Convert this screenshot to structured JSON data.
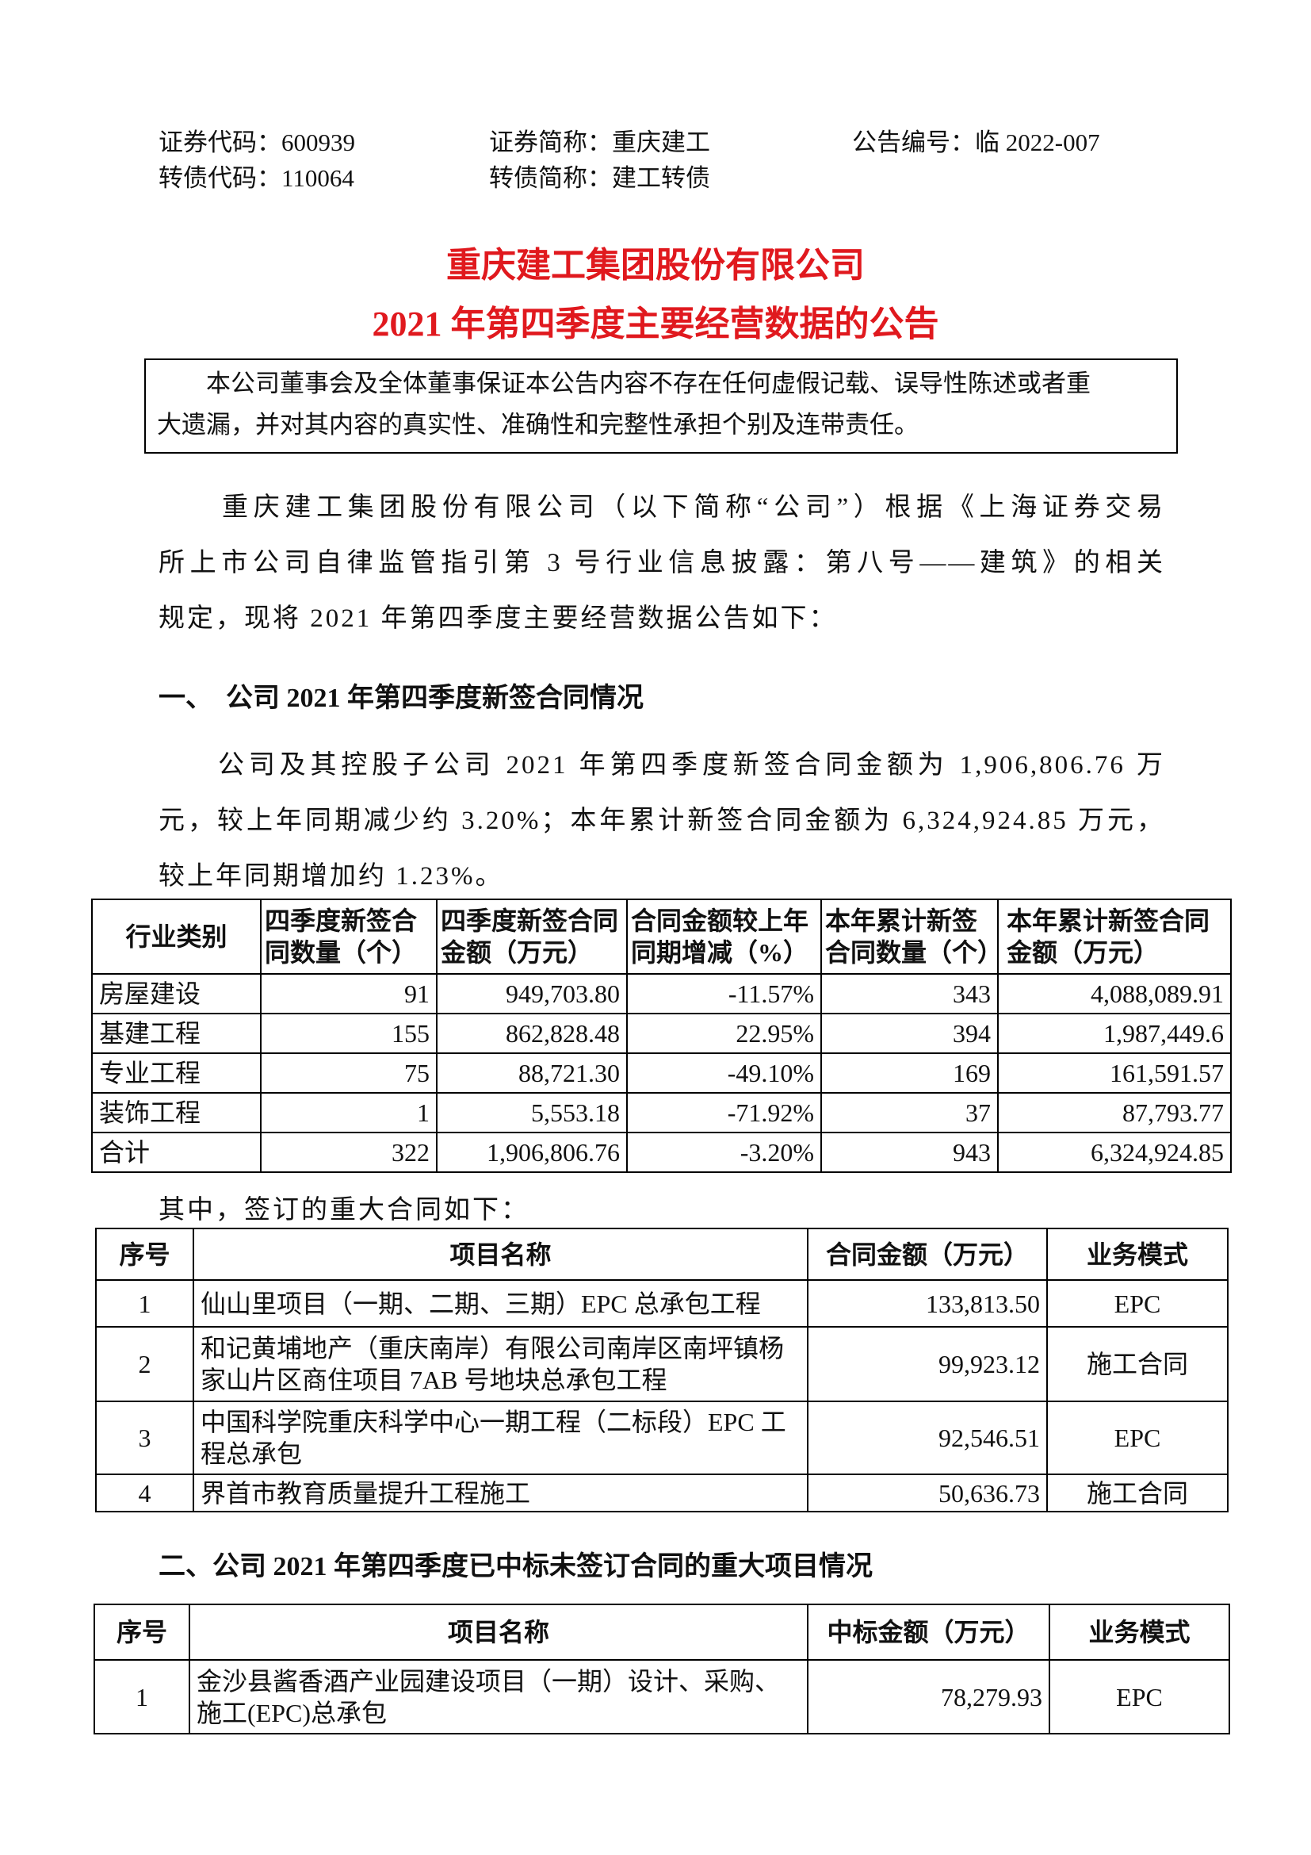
{
  "header": {
    "stock_code": "证券代码：600939",
    "stock_name": "证券简称：重庆建工",
    "notice_no": "公告编号：临 2022-007",
    "bond_code": "转债代码：110064",
    "bond_name": "转债简称：建工转债"
  },
  "title": {
    "line1": "重庆建工集团股份有限公司",
    "line2": "2021 年第四季度主要经营数据的公告"
  },
  "notice": {
    "line1": "本公司董事会及全体董事保证本公告内容不存在任何虚假记载、误导性陈述或者重",
    "line2": "大遗漏，并对其内容的真实性、准确性和完整性承担个别及连带责任。"
  },
  "intro": [
    "重庆建工集团股份有限公司（以下简称“公司”）根据《上海证券交易",
    "所上市公司自律监管指引第 3 号行业信息披露：第八号——建筑》的相关",
    "规定，现将 2021 年第四季度主要经营数据公告如下："
  ],
  "section1": {
    "heading": "一、　公司 2021 年第四季度新签合同情况",
    "para": [
      "公司及其控股子公司 2021 年第四季度新签合同金额为 1,906,806.76 万",
      "元，较上年同期减少约 3.20%；本年累计新签合同金额为 6,324,924.85 万元，",
      "较上年同期增加约 1.23%。"
    ]
  },
  "table1": {
    "headers": [
      "行业类别",
      "四季度新签合同数量（个）",
      "四季度新签合同金额（万元）",
      "合同金额较上年同期增减（%）",
      "本年累计新签合同数量（个）",
      "本年累计新签合同金额（万元）"
    ],
    "rows": [
      [
        "房屋建设",
        "91",
        "949,703.80",
        "-11.57%",
        "343",
        "4,088,089.91"
      ],
      [
        "基建工程",
        "155",
        "862,828.48",
        "22.95%",
        "394",
        "1,987,449.6"
      ],
      [
        "专业工程",
        "75",
        "88,721.30",
        "-49.10%",
        "169",
        "161,591.57"
      ],
      [
        "装饰工程",
        "1",
        "5,553.18",
        "-71.92%",
        "37",
        "87,793.77"
      ],
      [
        "合计",
        "322",
        "1,906,806.76",
        "-3.20%",
        "943",
        "6,324,924.85"
      ]
    ]
  },
  "major_intro": "其中，签订的重大合同如下：",
  "table2": {
    "headers": [
      "序号",
      "项目名称",
      "合同金额（万元）",
      "业务模式"
    ],
    "rows": [
      [
        "1",
        "仙山里项目（一期、二期、三期）EPC 总承包工程",
        "133,813.50",
        "EPC"
      ],
      [
        "2",
        "和记黄埔地产（重庆南岸）有限公司南岸区南坪镇杨家山片区商住项目 7AB 号地块总承包工程",
        "99,923.12",
        "施工合同"
      ],
      [
        "3",
        "中国科学院重庆科学中心一期工程（二标段）EPC 工程总承包",
        "92,546.51",
        "EPC"
      ],
      [
        "4",
        "界首市教育质量提升工程施工",
        "50,636.73",
        "施工合同"
      ]
    ]
  },
  "section2": {
    "heading": "二、公司 2021 年第四季度已中标未签订合同的重大项目情况"
  },
  "table3": {
    "headers": [
      "序号",
      "项目名称",
      "中标金额（万元）",
      "业务模式"
    ],
    "rows": [
      [
        "1",
        "金沙县酱香酒产业园建设项目（一期）设计、采购、施工(EPC)总承包",
        "78,279.93",
        "EPC"
      ]
    ]
  },
  "colors": {
    "title": "#e0191e"
  }
}
